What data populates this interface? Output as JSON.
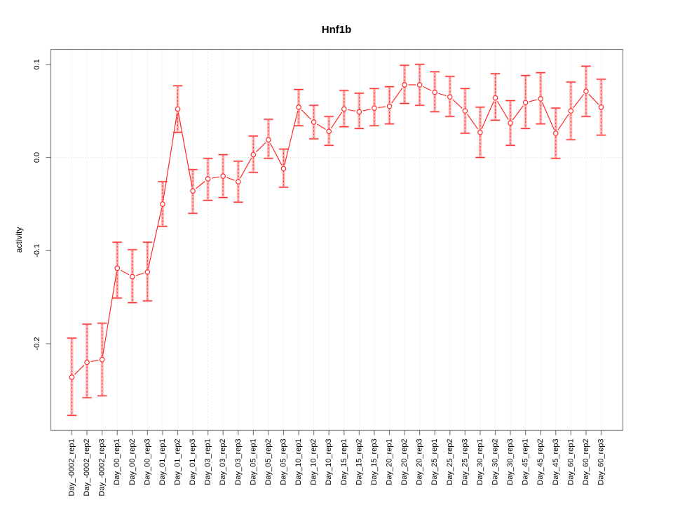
{
  "chart_data": {
    "type": "line",
    "title": "Hnf1b",
    "xlabel": "",
    "ylabel": "activity",
    "legend": "none",
    "grid": "dotted vertical gridline per category; dotted horizontal line at y=0",
    "ylim": [
      -0.293,
      0.116
    ],
    "y_ticks": [
      0.1,
      0.0,
      -0.1,
      -0.2
    ],
    "y_tick_labels": [
      "0.1",
      "0.0",
      "-0.1",
      "-0.2"
    ],
    "marker": "open-circle",
    "colors": {
      "series": "#ff2a2a",
      "errorbar_band": "#ffb0b0",
      "grid": "#d9d9d9",
      "axis": "#808080",
      "text": "#000000",
      "title": "#000000"
    },
    "categories": [
      "Day_-0002_rep1",
      "Day_-0002_rep2",
      "Day_-0002_rep3",
      "Day_00_rep1",
      "Day_00_rep2",
      "Day_00_rep3",
      "Day_01_rep1",
      "Day_01_rep2",
      "Day_01_rep3",
      "Day_03_rep1",
      "Day_03_rep2",
      "Day_03_rep3",
      "Day_05_rep1",
      "Day_05_rep2",
      "Day_05_rep3",
      "Day_10_rep1",
      "Day_10_rep2",
      "Day_10_rep3",
      "Day_15_rep1",
      "Day_15_rep2",
      "Day_15_rep3",
      "Day_20_rep1",
      "Day_20_rep2",
      "Day_20_rep3",
      "Day_25_rep1",
      "Day_25_rep2",
      "Day_25_rep3",
      "Day_30_rep1",
      "Day_30_rep2",
      "Day_30_rep3",
      "Day_45_rep1",
      "Day_45_rep2",
      "Day_45_rep3",
      "Day_60_rep1",
      "Day_60_rep2",
      "Day_60_rep3"
    ],
    "values": [
      -0.236,
      -0.22,
      -0.217,
      -0.119,
      -0.128,
      -0.123,
      -0.05,
      0.052,
      -0.036,
      -0.023,
      -0.02,
      -0.026,
      0.003,
      0.019,
      -0.012,
      0.054,
      0.038,
      0.028,
      0.052,
      0.049,
      0.053,
      0.055,
      0.078,
      0.078,
      0.07,
      0.065,
      0.05,
      0.027,
      0.064,
      0.037,
      0.059,
      0.063,
      0.026,
      0.05,
      0.071,
      0.054
    ],
    "err_low": [
      -0.277,
      -0.258,
      -0.256,
      -0.151,
      -0.156,
      -0.154,
      -0.074,
      0.027,
      -0.06,
      -0.046,
      -0.043,
      -0.048,
      -0.016,
      -0.001,
      -0.032,
      0.034,
      0.02,
      0.013,
      0.033,
      0.031,
      0.034,
      0.036,
      0.058,
      0.056,
      0.049,
      0.044,
      0.026,
      0.0,
      0.04,
      0.013,
      0.031,
      0.036,
      -0.001,
      0.019,
      0.044,
      0.024
    ],
    "err_high": [
      -0.194,
      -0.179,
      -0.178,
      -0.091,
      -0.099,
      -0.091,
      -0.026,
      0.077,
      -0.013,
      -0.001,
      0.003,
      -0.004,
      0.023,
      0.041,
      0.009,
      0.073,
      0.056,
      0.044,
      0.072,
      0.069,
      0.074,
      0.076,
      0.099,
      0.1,
      0.092,
      0.087,
      0.074,
      0.054,
      0.09,
      0.061,
      0.088,
      0.091,
      0.053,
      0.081,
      0.098,
      0.084
    ]
  }
}
